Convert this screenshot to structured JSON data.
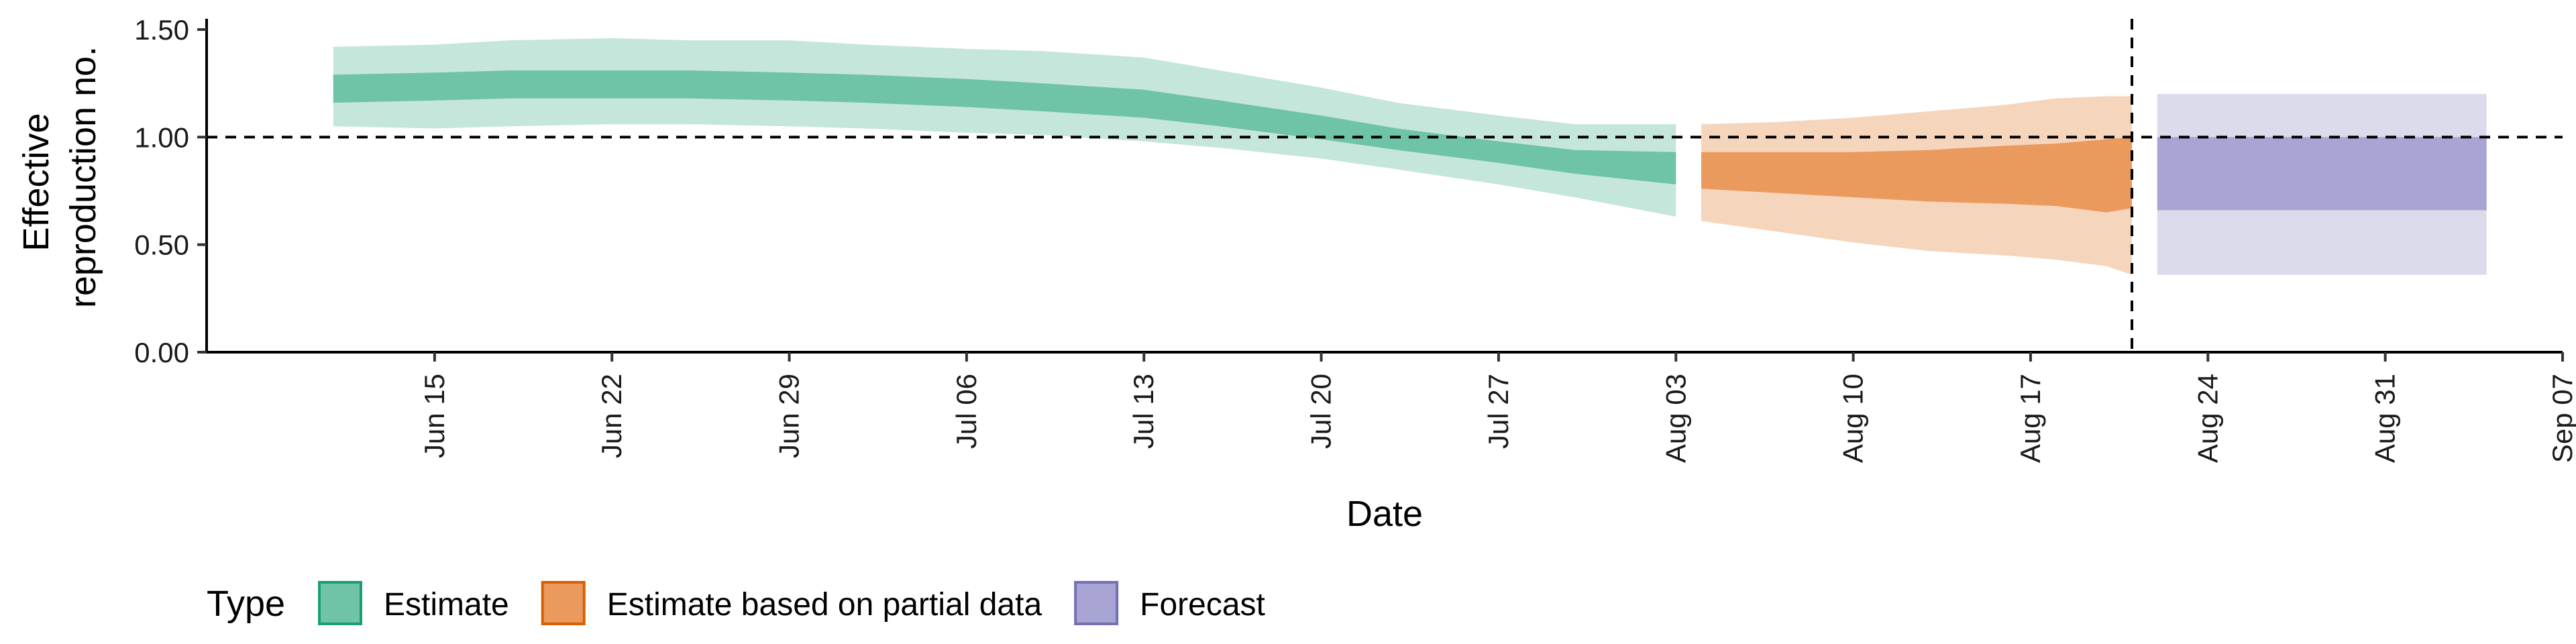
{
  "chart_data": {
    "type": "area",
    "xlabel": "Date",
    "ylabel": "Effective reproduction no.",
    "ylabel_lines": [
      "Effective",
      "reproduction no."
    ],
    "x_axis_type": "date",
    "xlim": [
      "2021-06-06",
      "2021-09-07"
    ],
    "ylim": [
      0,
      1.55
    ],
    "x_ticks": [
      {
        "date": "2021-06-15",
        "label": "Jun 15"
      },
      {
        "date": "2021-06-22",
        "label": "Jun 22"
      },
      {
        "date": "2021-06-29",
        "label": "Jun 29"
      },
      {
        "date": "2021-07-06",
        "label": "Jul 06"
      },
      {
        "date": "2021-07-13",
        "label": "Jul 13"
      },
      {
        "date": "2021-07-20",
        "label": "Jul 20"
      },
      {
        "date": "2021-07-27",
        "label": "Jul 27"
      },
      {
        "date": "2021-08-03",
        "label": "Aug 03"
      },
      {
        "date": "2021-08-10",
        "label": "Aug 10"
      },
      {
        "date": "2021-08-17",
        "label": "Aug 17"
      },
      {
        "date": "2021-08-24",
        "label": "Aug 24"
      },
      {
        "date": "2021-08-31",
        "label": "Aug 31"
      },
      {
        "date": "2021-09-07",
        "label": "Sep 07"
      }
    ],
    "y_ticks": [
      {
        "value": 0,
        "label": "0.00"
      },
      {
        "value": 0.5,
        "label": "0.50"
      },
      {
        "value": 1.0,
        "label": "1.00"
      },
      {
        "value": 1.5,
        "label": "1.50"
      }
    ],
    "reference_lines": {
      "horizontal_y": 1.0,
      "vertical_x": "2021-08-21"
    },
    "grid": false,
    "legend": {
      "title": "Type",
      "placement": "bottom-left"
    },
    "series": [
      {
        "name": "Estimate",
        "color": "#1b9e77",
        "inner_color": "#6fc3a6",
        "outer_color": "#c5e6da",
        "points": [
          {
            "x": "2021-06-11",
            "lo90": 1.05,
            "lo50": 1.16,
            "hi50": 1.29,
            "hi90": 1.42
          },
          {
            "x": "2021-06-15",
            "lo90": 1.04,
            "lo50": 1.17,
            "hi50": 1.3,
            "hi90": 1.43
          },
          {
            "x": "2021-06-18",
            "lo90": 1.05,
            "lo50": 1.18,
            "hi50": 1.31,
            "hi90": 1.45
          },
          {
            "x": "2021-06-22",
            "lo90": 1.06,
            "lo50": 1.18,
            "hi50": 1.31,
            "hi90": 1.46
          },
          {
            "x": "2021-06-25",
            "lo90": 1.06,
            "lo50": 1.18,
            "hi50": 1.31,
            "hi90": 1.45
          },
          {
            "x": "2021-06-29",
            "lo90": 1.05,
            "lo50": 1.17,
            "hi50": 1.3,
            "hi90": 1.45
          },
          {
            "x": "2021-07-02",
            "lo90": 1.04,
            "lo50": 1.16,
            "hi50": 1.29,
            "hi90": 1.43
          },
          {
            "x": "2021-07-06",
            "lo90": 1.02,
            "lo50": 1.14,
            "hi50": 1.27,
            "hi90": 1.41
          },
          {
            "x": "2021-07-09",
            "lo90": 1.01,
            "lo50": 1.12,
            "hi50": 1.25,
            "hi90": 1.4
          },
          {
            "x": "2021-07-13",
            "lo90": 0.98,
            "lo50": 1.09,
            "hi50": 1.22,
            "hi90": 1.37
          },
          {
            "x": "2021-07-16",
            "lo90": 0.95,
            "lo50": 1.05,
            "hi50": 1.17,
            "hi90": 1.31
          },
          {
            "x": "2021-07-20",
            "lo90": 0.9,
            "lo50": 0.99,
            "hi50": 1.1,
            "hi90": 1.23
          },
          {
            "x": "2021-07-23",
            "lo90": 0.85,
            "lo50": 0.94,
            "hi50": 1.04,
            "hi90": 1.16
          },
          {
            "x": "2021-07-27",
            "lo90": 0.78,
            "lo50": 0.88,
            "hi50": 0.98,
            "hi90": 1.1
          },
          {
            "x": "2021-07-30",
            "lo90": 0.72,
            "lo50": 0.83,
            "hi50": 0.94,
            "hi90": 1.06
          },
          {
            "x": "2021-08-03",
            "lo90": 0.63,
            "lo50": 0.78,
            "hi50": 0.93,
            "hi90": 1.06
          }
        ]
      },
      {
        "name": "Estimate based on partial data",
        "color": "#d95f02",
        "inner_color": "#eb9a5e",
        "outer_color": "#f6d5bd",
        "points": [
          {
            "x": "2021-08-04",
            "lo90": 0.61,
            "lo50": 0.76,
            "hi50": 0.93,
            "hi90": 1.06
          },
          {
            "x": "2021-08-07",
            "lo90": 0.56,
            "lo50": 0.74,
            "hi50": 0.93,
            "hi90": 1.07
          },
          {
            "x": "2021-08-10",
            "lo90": 0.51,
            "lo50": 0.72,
            "hi50": 0.93,
            "hi90": 1.09
          },
          {
            "x": "2021-08-13",
            "lo90": 0.47,
            "lo50": 0.7,
            "hi50": 0.94,
            "hi90": 1.12
          },
          {
            "x": "2021-08-16",
            "lo90": 0.45,
            "lo50": 0.69,
            "hi50": 0.96,
            "hi90": 1.15
          },
          {
            "x": "2021-08-18",
            "lo90": 0.43,
            "lo50": 0.68,
            "hi50": 0.97,
            "hi90": 1.18
          },
          {
            "x": "2021-08-20",
            "lo90": 0.4,
            "lo50": 0.65,
            "hi50": 0.99,
            "hi90": 1.19
          },
          {
            "x": "2021-08-21",
            "lo90": 0.36,
            "lo50": 0.67,
            "hi50": 1.0,
            "hi90": 1.19
          }
        ]
      },
      {
        "name": "Forecast",
        "color": "#7570b3",
        "inner_color": "#a8a4d3",
        "outer_color": "#dcdbec",
        "points": [
          {
            "x": "2021-08-22",
            "lo90": 0.36,
            "lo50": 0.66,
            "hi50": 1.0,
            "hi90": 1.2
          },
          {
            "x": "2021-09-04",
            "lo90": 0.36,
            "lo50": 0.66,
            "hi50": 1.0,
            "hi90": 1.2
          }
        ]
      }
    ]
  }
}
